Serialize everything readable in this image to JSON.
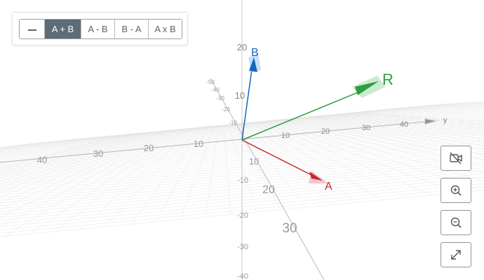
{
  "toolbar": {
    "operations": [
      {
        "label": "",
        "icon": "minus-icon",
        "active": false
      },
      {
        "label": "A + B",
        "active": true
      },
      {
        "label": "A - B",
        "active": false
      },
      {
        "label": "B - A",
        "active": false
      },
      {
        "label": "A x B",
        "active": false
      }
    ]
  },
  "axes": {
    "x_ticks": [
      "10",
      "20",
      "30"
    ],
    "y_ticks": [
      "10",
      "20",
      "30",
      "40"
    ],
    "neg_y_ticks": [
      "10",
      "20",
      "30",
      "40"
    ],
    "z_ticks": [
      "10",
      "20"
    ],
    "neg_z_ticks": [
      "10",
      "20",
      "30",
      "40"
    ],
    "back_ticks": [
      "50",
      "40",
      "30",
      "20",
      "10"
    ],
    "y_label": "y"
  },
  "vectors": {
    "A": {
      "label": "A",
      "color": "#c62828"
    },
    "B": {
      "label": "B",
      "color": "#1565c0"
    },
    "R": {
      "label": "R",
      "color": "#2e9e3e"
    }
  },
  "controls": [
    {
      "name": "camera-off-button",
      "icon": "video-off-icon"
    },
    {
      "name": "zoom-in-button",
      "icon": "zoom-in-icon"
    },
    {
      "name": "zoom-out-button",
      "icon": "zoom-out-icon"
    },
    {
      "name": "fullscreen-button",
      "icon": "expand-icon"
    }
  ]
}
